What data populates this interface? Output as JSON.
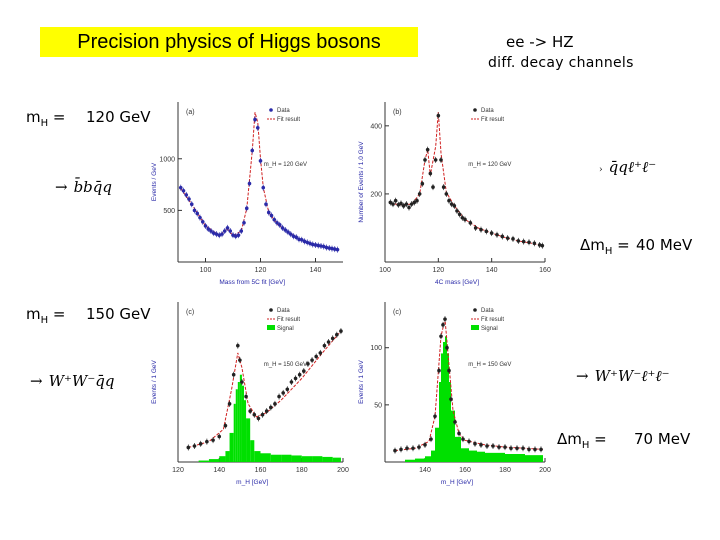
{
  "title": "Precision physics of Higgs bosons",
  "header": {
    "line1": "ee -> HZ",
    "line2": "diff. decay channels"
  },
  "rows": [
    {
      "mh_label": "m",
      "mh_sub": "H",
      "mh_eq": " =",
      "mh_value": "120 GeV",
      "channel_left": "b̄bq̄q",
      "channel_right": "q̄qℓ⁺ℓ⁻",
      "dm_prefix": "Δm",
      "dm_sub": "H",
      "dm_eq": " =",
      "dm_value": "40 MeV"
    },
    {
      "mh_label": "m",
      "mh_sub": "H",
      "mh_eq": " =",
      "mh_value": "150 GeV",
      "channel_left": "W⁺W⁻q̄q",
      "channel_right": "W⁺W⁻ℓ⁺ℓ⁻",
      "dm_prefix": "Δm",
      "dm_sub": "H",
      "dm_eq": " =",
      "dm_value": "70 MeV"
    }
  ],
  "arrow": "→",
  "chart_data": [
    {
      "type": "scatter",
      "panel": "(a)",
      "xlabel": "Mass from 5C fit [GeV]",
      "ylabel": "Events / GeV",
      "xlim": [
        90,
        150
      ],
      "ylim": [
        0,
        1550
      ],
      "xticks": [
        100,
        120,
        140
      ],
      "yticks": [
        500,
        1000
      ],
      "legend": [
        "Data",
        "Fit result"
      ],
      "annotation": "m_H = 120 GeV",
      "series": [
        {
          "name": "Data",
          "x": [
            91,
            92,
            93,
            94,
            95,
            96,
            97,
            98,
            99,
            100,
            101,
            102,
            103,
            104,
            105,
            106,
            107,
            108,
            109,
            110,
            111,
            112,
            113,
            114,
            115,
            116,
            117,
            118,
            119,
            120,
            121,
            122,
            123,
            124,
            125,
            126,
            127,
            128,
            129,
            130,
            131,
            132,
            133,
            134,
            135,
            136,
            137,
            138,
            139,
            140,
            141,
            142,
            143,
            144,
            145,
            146,
            147,
            148
          ],
          "y": [
            720,
            690,
            650,
            610,
            560,
            500,
            470,
            430,
            390,
            350,
            320,
            300,
            280,
            270,
            260,
            270,
            300,
            330,
            300,
            260,
            250,
            260,
            300,
            380,
            520,
            760,
            1080,
            1380,
            1300,
            980,
            720,
            560,
            480,
            450,
            410,
            380,
            360,
            330,
            310,
            290,
            270,
            250,
            240,
            220,
            215,
            200,
            190,
            180,
            170,
            165,
            160,
            155,
            150,
            140,
            135,
            130,
            125,
            120
          ]
        },
        {
          "name": "Fit result",
          "x": [
            91,
            95,
            100,
            105,
            108,
            110,
            113,
            115,
            117,
            118,
            119,
            120,
            121,
            123,
            126,
            130,
            135,
            140,
            145,
            148
          ],
          "y": [
            710,
            560,
            350,
            260,
            320,
            255,
            300,
            520,
            1080,
            1450,
            1350,
            1000,
            720,
            480,
            370,
            290,
            215,
            165,
            135,
            120
          ]
        }
      ]
    },
    {
      "type": "scatter",
      "panel": "(b)",
      "xlabel": "4C mass [GeV]",
      "ylabel": "Number of Events / 1.0 GeV",
      "xlim": [
        100,
        160
      ],
      "ylim": [
        0,
        470
      ],
      "xticks": [
        100,
        120,
        140,
        160
      ],
      "yticks": [
        200,
        400
      ],
      "legend": [
        "Data",
        "Fit result"
      ],
      "annotation": "m_H = 120 GeV",
      "series": [
        {
          "name": "Data",
          "x": [
            102,
            103,
            104,
            105,
            106,
            107,
            108,
            109,
            110,
            111,
            112,
            113,
            114,
            115,
            116,
            117,
            118,
            119,
            120,
            121,
            122,
            123,
            124,
            125,
            126,
            127,
            128,
            129,
            130,
            132,
            134,
            136,
            138,
            140,
            142,
            144,
            146,
            148,
            150,
            152,
            154,
            156,
            158,
            159
          ],
          "y": [
            175,
            170,
            180,
            168,
            172,
            165,
            170,
            160,
            170,
            175,
            180,
            200,
            230,
            300,
            330,
            260,
            220,
            300,
            430,
            300,
            220,
            200,
            180,
            170,
            165,
            150,
            140,
            130,
            125,
            115,
            100,
            95,
            90,
            85,
            80,
            75,
            70,
            68,
            62,
            60,
            58,
            55,
            50,
            48
          ]
        },
        {
          "name": "Fit result",
          "x": [
            102,
            106,
            110,
            113,
            115,
            116,
            117,
            119,
            120,
            121,
            123,
            126,
            130,
            135,
            140,
            145,
            150,
            155,
            159
          ],
          "y": [
            172,
            168,
            170,
            200,
            300,
            330,
            255,
            340,
            440,
            320,
            205,
            165,
            125,
            100,
            85,
            72,
            62,
            55,
            48
          ]
        }
      ]
    },
    {
      "type": "scatter",
      "panel": "(c)",
      "xlabel": "m_H [GeV]",
      "ylabel": "Events / 1 GeV",
      "xlim": [
        120,
        200
      ],
      "ylim": [
        0,
        220
      ],
      "xticks": [
        120,
        140,
        160,
        180,
        200
      ],
      "yticks": [],
      "legend": [
        "Data",
        "Fit result",
        "Signal"
      ],
      "annotation": "m_H = 150 GeV",
      "series": [
        {
          "name": "Data",
          "x": [
            125,
            128,
            131,
            134,
            137,
            140,
            143,
            145,
            147,
            149,
            150,
            151,
            153,
            155,
            157,
            159,
            161,
            163,
            165,
            167,
            169,
            171,
            173,
            175,
            177,
            179,
            181,
            183,
            185,
            187,
            189,
            191,
            193,
            195,
            197,
            199
          ],
          "y": [
            20,
            22,
            25,
            28,
            30,
            35,
            50,
            80,
            120,
            160,
            140,
            110,
            90,
            70,
            65,
            60,
            65,
            70,
            75,
            80,
            90,
            95,
            100,
            110,
            115,
            120,
            125,
            135,
            140,
            145,
            150,
            160,
            165,
            170,
            175,
            180
          ]
        },
        {
          "name": "Fit result",
          "x": [
            125,
            135,
            142,
            146,
            149,
            151,
            154,
            158,
            163,
            170,
            180,
            190,
            199
          ],
          "y": [
            20,
            28,
            45,
            100,
            150,
            130,
            80,
            62,
            68,
            85,
            115,
            150,
            180
          ]
        },
        {
          "name": "Signal",
          "x": [
            130,
            135,
            140,
            143,
            145,
            147,
            148,
            149,
            150,
            151,
            152,
            153,
            155,
            157,
            160,
            165,
            170,
            175,
            180,
            185,
            190,
            195,
            199
          ],
          "y": [
            2,
            4,
            8,
            15,
            40,
            80,
            100,
            110,
            120,
            105,
            85,
            60,
            30,
            15,
            12,
            10,
            10,
            9,
            8,
            8,
            7,
            6,
            6
          ]
        }
      ]
    },
    {
      "type": "scatter",
      "panel": "(c)",
      "xlabel": "m_H [GeV]",
      "ylabel": "Events / 1 GeV",
      "xlim": [
        120,
        200
      ],
      "ylim": [
        0,
        140
      ],
      "xticks": [
        140,
        160,
        180,
        200
      ],
      "yticks": [
        50,
        100
      ],
      "legend": [
        "Data",
        "Fit result",
        "Signal"
      ],
      "annotation": "m_H = 150 GeV",
      "series": [
        {
          "name": "Data",
          "x": [
            125,
            128,
            131,
            134,
            137,
            140,
            143,
            145,
            147,
            148,
            149,
            150,
            151,
            152,
            153,
            155,
            157,
            159,
            162,
            165,
            168,
            171,
            174,
            177,
            180,
            183,
            186,
            189,
            192,
            195,
            198
          ],
          "y": [
            10,
            11,
            12,
            12,
            13,
            15,
            20,
            40,
            80,
            110,
            120,
            125,
            100,
            80,
            55,
            35,
            25,
            20,
            18,
            16,
            15,
            14,
            14,
            13,
            13,
            12,
            12,
            12,
            11,
            11,
            11
          ]
        },
        {
          "name": "Fit result",
          "x": [
            125,
            135,
            142,
            145,
            148,
            150,
            152,
            154,
            157,
            160,
            170,
            180,
            190,
            199
          ],
          "y": [
            10,
            12,
            18,
            40,
            110,
            125,
            85,
            45,
            25,
            19,
            15,
            13,
            12,
            11
          ]
        },
        {
          "name": "Signal",
          "x": [
            130,
            135,
            140,
            143,
            145,
            147,
            148,
            149,
            150,
            151,
            152,
            153,
            155,
            158,
            162,
            166,
            170,
            175,
            180,
            185,
            190,
            195,
            199
          ],
          "y": [
            2,
            3,
            5,
            10,
            30,
            70,
            95,
            105,
            110,
            95,
            70,
            45,
            22,
            12,
            10,
            9,
            8,
            8,
            7,
            7,
            6,
            6,
            5
          ]
        }
      ]
    }
  ]
}
